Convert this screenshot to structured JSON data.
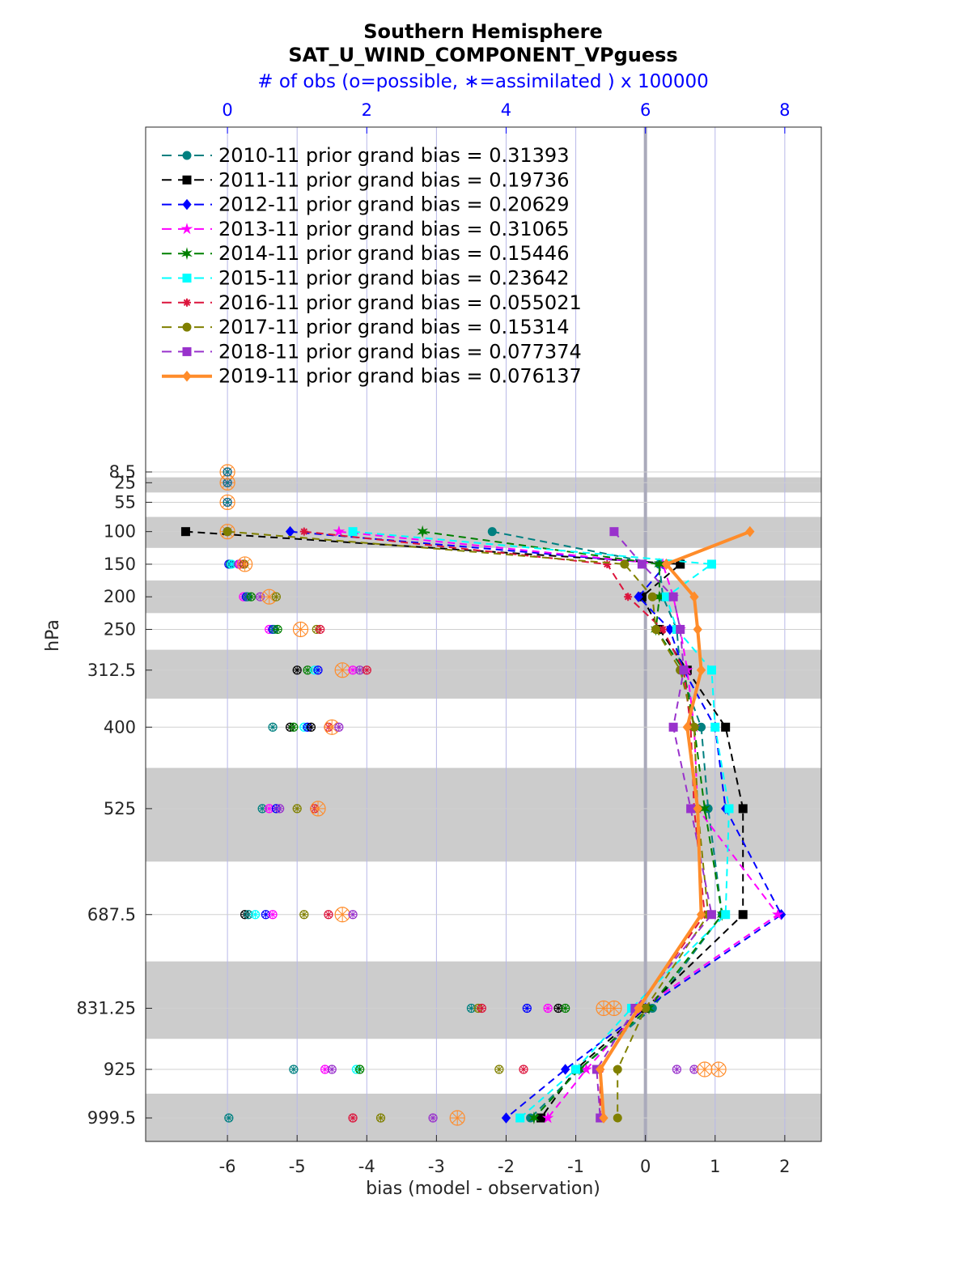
{
  "chart_data": {
    "type": "line",
    "title": "Southern Hemisphere",
    "subtitle": "SAT_U_WIND_COMPONENT_VPguess",
    "top_axis_label": "# of obs (o=possible, ∗=assimilated ) x 100000",
    "xlabel": "bias (model - observation)",
    "ylabel": "hPa",
    "xlim": [
      -7,
      2.35
    ],
    "x_ticks": [
      "-6",
      "-5",
      "-4",
      "-3",
      "-2",
      "-1",
      "0",
      "1",
      "2"
    ],
    "top_ticks": [
      "0",
      "2",
      "4",
      "6",
      "8"
    ],
    "top_tick_values": [
      0,
      2,
      4,
      6,
      8
    ],
    "levels": [
      8.5,
      25,
      55,
      100,
      150,
      200,
      250,
      312.5,
      400,
      525,
      687.5,
      831.25,
      925,
      999.5
    ],
    "level_labels": [
      "8.5",
      "25",
      "55",
      "100",
      "150",
      "200",
      "250",
      "312.5",
      "400",
      "525",
      "687.5",
      "831.25",
      "925",
      "999.5"
    ],
    "grid": true,
    "legend_position": "top-left",
    "series": [
      {
        "name": "2010-11 prior grand bias = 0.31393",
        "color": "#008080",
        "marker": "circle",
        "style": "dashed",
        "levels": [
          100,
          150,
          200,
          250,
          312.5,
          400,
          525,
          687.5,
          831.25,
          925,
          999.5
        ],
        "values": [
          -2.2,
          0.2,
          0.25,
          0.45,
          0.5,
          0.8,
          0.9,
          1.1,
          0.1,
          -0.95,
          -1.65
        ],
        "obs_counts": [
          5e-05,
          5e-05,
          5e-05,
          0.0007,
          0.005,
          0.008,
          0.012,
          0.012,
          0.015,
          0.025,
          0.02
        ]
      },
      {
        "name": "2011-11 prior grand bias = 0.19736",
        "color": "#000000",
        "marker": "square",
        "style": "dashed",
        "levels": [
          100,
          150,
          200,
          250,
          312.5,
          400,
          525,
          687.5,
          831.25,
          925,
          999.5
        ],
        "values": [
          -6.6,
          0.5,
          -0.05,
          0.2,
          0.6,
          1.15,
          1.4,
          1.4,
          0.0,
          -1.0,
          -1.5
        ],
        "obs_counts": [
          5e-05,
          5e-05,
          5e-05,
          0.0007,
          0.006,
          0.009,
          0.013,
          0.013,
          0.016,
          0.026,
          0.021
        ]
      },
      {
        "name": "2012-11 prior grand bias = 0.20629",
        "color": "#0000ff",
        "marker": "diamond",
        "style": "dashed",
        "levels": [
          100,
          150,
          200,
          250,
          312.5,
          400,
          525,
          687.5,
          831.25,
          925,
          999.5
        ],
        "values": [
          -5.1,
          0.3,
          -0.1,
          0.35,
          0.55,
          1.0,
          1.15,
          1.95,
          0.0,
          -1.15,
          -2.0
        ],
        "obs_counts": [
          5e-05,
          5e-05,
          5e-05,
          0.0007,
          0.006,
          0.009,
          0.013,
          0.013,
          0.016,
          0.026,
          0.021
        ]
      },
      {
        "name": "2013-11 prior grand bias = 0.31065",
        "color": "#ff00ff",
        "marker": "star",
        "style": "dashed",
        "levels": [
          100,
          150,
          200,
          250,
          312.5,
          400,
          525,
          687.5,
          831.25,
          925,
          999.5
        ],
        "values": [
          -4.4,
          0.25,
          0.4,
          0.5,
          0.6,
          0.7,
          0.75,
          1.9,
          -0.05,
          -0.85,
          -1.4
        ],
        "obs_counts": [
          5e-05,
          5e-05,
          5e-05,
          0.0007,
          0.006,
          0.009,
          0.013,
          0.013,
          0.016,
          0.026,
          0.021
        ]
      },
      {
        "name": "2014-11 prior grand bias = 0.15446",
        "color": "#008000",
        "marker": "hexagram",
        "style": "dashed",
        "levels": [
          100,
          150,
          200,
          250,
          312.5,
          400,
          525,
          687.5,
          831.25,
          925,
          999.5
        ],
        "values": [
          -3.2,
          0.2,
          0.2,
          0.15,
          0.55,
          0.7,
          0.85,
          1.1,
          0.05,
          -0.95,
          -1.6
        ],
        "obs_counts": [
          5e-05,
          5e-05,
          5e-05,
          0.0007,
          0.006,
          0.009,
          0.013,
          0.013,
          0.016,
          0.026,
          0.021
        ]
      },
      {
        "name": "2015-11 prior grand bias = 0.23642",
        "color": "#00ffff",
        "marker": "square",
        "style": "dashed",
        "levels": [
          100,
          150,
          200,
          250,
          312.5,
          400,
          525,
          687.5,
          831.25,
          925,
          999.5
        ],
        "values": [
          -4.2,
          0.95,
          0.3,
          0.45,
          0.95,
          1.0,
          1.2,
          1.15,
          -0.2,
          -1.0,
          -1.8
        ],
        "obs_counts": [
          5e-05,
          5e-05,
          5e-05,
          0.0007,
          0.006,
          0.009,
          0.013,
          0.013,
          0.016,
          0.026,
          0.021
        ]
      },
      {
        "name": "2016-11 prior grand bias = 0.055021",
        "color": "#dc143c",
        "marker": "asterisk",
        "style": "dashed",
        "levels": [
          100,
          150,
          200,
          250,
          312.5,
          400,
          525,
          687.5,
          831.25,
          925,
          999.5
        ],
        "values": [
          -4.9,
          -0.55,
          -0.25,
          0.25,
          0.55,
          0.65,
          0.7,
          0.85,
          -0.1,
          -0.65,
          -0.65
        ],
        "obs_counts": [
          5e-05,
          5e-05,
          5e-05,
          0.0007,
          0.006,
          0.009,
          0.013,
          0.013,
          0.016,
          0.026,
          0.021
        ]
      },
      {
        "name": "2017-11 prior grand bias = 0.15314",
        "color": "#808000",
        "marker": "circle",
        "style": "dashed",
        "levels": [
          100,
          150,
          200,
          250,
          312.5,
          400,
          525,
          687.5,
          831.25,
          925,
          999.5
        ],
        "values": [
          -6.0,
          -0.3,
          0.1,
          0.15,
          0.5,
          0.7,
          0.75,
          0.9,
          0.0,
          -0.4,
          -0.4
        ],
        "obs_counts": [
          5e-05,
          5e-05,
          5e-05,
          0.0007,
          0.006,
          0.009,
          0.013,
          0.013,
          0.016,
          0.026,
          0.021
        ]
      },
      {
        "name": "2018-11 prior grand bias = 0.077374",
        "color": "#9932cc",
        "marker": "square",
        "style": "dashed",
        "levels": [
          100,
          150,
          200,
          250,
          312.5,
          400,
          525,
          687.5,
          831.25,
          925,
          999.5
        ],
        "values": [
          -0.45,
          -0.05,
          0.4,
          0.5,
          0.55,
          0.4,
          0.65,
          0.95,
          -0.15,
          -0.7,
          -0.65
        ],
        "obs_counts": [
          5e-05,
          5e-05,
          5e-05,
          0.0007,
          0.006,
          0.009,
          0.013,
          0.013,
          0.016,
          0.026,
          0.021
        ]
      },
      {
        "name": "2019-11 prior grand bias = 0.076137",
        "color": "#ff8c2a",
        "marker": "diamond",
        "style": "solid",
        "levels": [
          100,
          150,
          200,
          250,
          312.5,
          400,
          525,
          687.5,
          831.25,
          925,
          999.5
        ],
        "values": [
          1.5,
          0.3,
          0.7,
          0.75,
          0.8,
          0.6,
          0.75,
          0.8,
          -0.1,
          -0.65,
          -0.6
        ],
        "obs_counts": [
          5e-05,
          5e-05,
          5e-05,
          0.0007,
          0.006,
          0.009,
          0.013,
          0.013,
          0.016,
          0.026,
          0.021
        ]
      }
    ],
    "obs_markers": {
      "8.5": [
        [
          0.0,
          "#ff8c2a"
        ],
        [
          0.0,
          "#9932cc"
        ],
        [
          0.0,
          "#ff00ff"
        ],
        [
          0.0,
          "#008080"
        ]
      ],
      "25": [
        [
          0.0,
          "#ff8c2a"
        ],
        [
          0.0,
          "#9932cc"
        ],
        [
          0.0,
          "#ff00ff"
        ],
        [
          0.0,
          "#008080"
        ]
      ],
      "55": [
        [
          0.0,
          "#ff8c2a"
        ],
        [
          0.0,
          "#9932cc"
        ],
        [
          0.0,
          "#ff00ff"
        ],
        [
          0.0,
          "#008080"
        ]
      ],
      "100": [
        [
          0.0,
          "#ff8c2a"
        ],
        [
          0.0,
          "#9932cc"
        ],
        [
          0.0,
          "#ff00ff"
        ],
        [
          0.0,
          "#008080"
        ]
      ],
      "150": [
        [
          0.02,
          "#0000ff"
        ],
        [
          0.04,
          "#008080"
        ],
        [
          0.06,
          "#00ffff"
        ],
        [
          0.16,
          "#9932cc"
        ],
        [
          0.18,
          "#ff00ff"
        ],
        [
          0.23,
          "#dc143c"
        ],
        [
          0.24,
          "#808000"
        ],
        [
          0.25,
          "#ff8c2a"
        ]
      ],
      "200": [
        [
          0.23,
          "#ff00ff"
        ],
        [
          0.27,
          "#0000ff"
        ],
        [
          0.29,
          "#008080"
        ],
        [
          0.34,
          "#008000"
        ],
        [
          0.47,
          "#9932cc"
        ],
        [
          0.6,
          "#ff8c2a"
        ],
        [
          0.7,
          "#808000"
        ]
      ],
      "250": [
        [
          0.6,
          "#ff00ff"
        ],
        [
          0.65,
          "#0000ff"
        ],
        [
          0.67,
          "#008080"
        ],
        [
          0.72,
          "#008000"
        ],
        [
          1.05,
          "#ff8c2a"
        ],
        [
          1.28,
          "#808000"
        ],
        [
          1.33,
          "#dc143c"
        ]
      ],
      "312.5": [
        [
          1.0,
          "#000000"
        ],
        [
          1.15,
          "#008000"
        ],
        [
          1.25,
          "#00ffff"
        ],
        [
          1.3,
          "#0000ff"
        ],
        [
          1.65,
          "#ff8c2a"
        ],
        [
          1.8,
          "#ff00ff"
        ],
        [
          1.9,
          "#9932cc"
        ],
        [
          2.0,
          "#dc143c"
        ]
      ],
      "400": [
        [
          0.65,
          "#008080"
        ],
        [
          0.9,
          "#000000"
        ],
        [
          0.95,
          "#008000"
        ],
        [
          1.1,
          "#00ffff"
        ],
        [
          1.15,
          "#0000ff"
        ],
        [
          1.2,
          "#000000"
        ],
        [
          1.45,
          "#dc143c"
        ],
        [
          1.5,
          "#ff8c2a"
        ],
        [
          1.6,
          "#9932cc"
        ]
      ],
      "525": [
        [
          0.5,
          "#008080"
        ],
        [
          0.6,
          "#ff00ff"
        ],
        [
          0.7,
          "#0000ff"
        ],
        [
          0.75,
          "#9932cc"
        ],
        [
          1.0,
          "#808000"
        ],
        [
          1.25,
          "#dc143c"
        ],
        [
          1.3,
          "#ff8c2a"
        ]
      ],
      "687.5": [
        [
          0.25,
          "#000000"
        ],
        [
          0.3,
          "#008080"
        ],
        [
          0.4,
          "#00ffff"
        ],
        [
          0.55,
          "#0000ff"
        ],
        [
          0.65,
          "#ff00ff"
        ],
        [
          1.1,
          "#808000"
        ],
        [
          1.45,
          "#dc143c"
        ],
        [
          1.65,
          "#ff8c2a"
        ],
        [
          1.8,
          "#9932cc"
        ]
      ],
      "831.25": [
        [
          3.5,
          "#008080"
        ],
        [
          3.6,
          "#808000"
        ],
        [
          3.65,
          "#dc143c"
        ],
        [
          4.3,
          "#0000ff"
        ],
        [
          4.6,
          "#ff00ff"
        ],
        [
          4.75,
          "#000000"
        ],
        [
          4.85,
          "#008000"
        ],
        [
          5.4,
          "#ff8c2a"
        ],
        [
          5.55,
          "#ff8c2a"
        ]
      ],
      "925": [
        [
          0.95,
          "#008080"
        ],
        [
          1.4,
          "#ff00ff"
        ],
        [
          1.5,
          "#9932cc"
        ],
        [
          1.85,
          "#00ffff"
        ],
        [
          1.9,
          "#008000"
        ],
        [
          3.9,
          "#808000"
        ],
        [
          4.25,
          "#dc143c"
        ],
        [
          6.45,
          "#9932cc"
        ],
        [
          6.7,
          "#9932cc"
        ],
        [
          6.85,
          "#ff8c2a"
        ],
        [
          7.05,
          "#ff8c2a"
        ]
      ],
      "999.5": [
        [
          0.02,
          "#008080"
        ],
        [
          1.8,
          "#dc143c"
        ],
        [
          2.2,
          "#808000"
        ],
        [
          2.95,
          "#9932cc"
        ],
        [
          3.3,
          "#ff8c2a"
        ]
      ]
    }
  }
}
